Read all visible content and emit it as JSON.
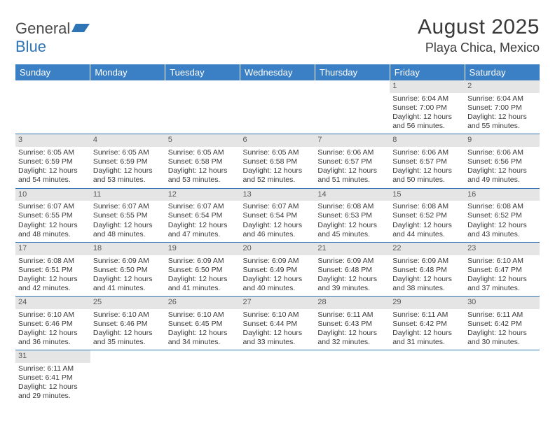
{
  "logo": {
    "text1": "General",
    "text2": "Blue"
  },
  "title": "August 2025",
  "location": "Playa Chica, Mexico",
  "colors": {
    "header_bg": "#3b7fc4",
    "header_text": "#ffffff",
    "daynum_bg": "#e5e5e5",
    "border": "#2f74b5",
    "text": "#3a3a3a"
  },
  "weekdays": [
    "Sunday",
    "Monday",
    "Tuesday",
    "Wednesday",
    "Thursday",
    "Friday",
    "Saturday"
  ],
  "weeks": [
    [
      null,
      null,
      null,
      null,
      null,
      {
        "n": "1",
        "sr": "6:04 AM",
        "ss": "7:00 PM",
        "dl": "12 hours and 56 minutes."
      },
      {
        "n": "2",
        "sr": "6:04 AM",
        "ss": "7:00 PM",
        "dl": "12 hours and 55 minutes."
      }
    ],
    [
      {
        "n": "3",
        "sr": "6:05 AM",
        "ss": "6:59 PM",
        "dl": "12 hours and 54 minutes."
      },
      {
        "n": "4",
        "sr": "6:05 AM",
        "ss": "6:59 PM",
        "dl": "12 hours and 53 minutes."
      },
      {
        "n": "5",
        "sr": "6:05 AM",
        "ss": "6:58 PM",
        "dl": "12 hours and 53 minutes."
      },
      {
        "n": "6",
        "sr": "6:05 AM",
        "ss": "6:58 PM",
        "dl": "12 hours and 52 minutes."
      },
      {
        "n": "7",
        "sr": "6:06 AM",
        "ss": "6:57 PM",
        "dl": "12 hours and 51 minutes."
      },
      {
        "n": "8",
        "sr": "6:06 AM",
        "ss": "6:57 PM",
        "dl": "12 hours and 50 minutes."
      },
      {
        "n": "9",
        "sr": "6:06 AM",
        "ss": "6:56 PM",
        "dl": "12 hours and 49 minutes."
      }
    ],
    [
      {
        "n": "10",
        "sr": "6:07 AM",
        "ss": "6:55 PM",
        "dl": "12 hours and 48 minutes."
      },
      {
        "n": "11",
        "sr": "6:07 AM",
        "ss": "6:55 PM",
        "dl": "12 hours and 48 minutes."
      },
      {
        "n": "12",
        "sr": "6:07 AM",
        "ss": "6:54 PM",
        "dl": "12 hours and 47 minutes."
      },
      {
        "n": "13",
        "sr": "6:07 AM",
        "ss": "6:54 PM",
        "dl": "12 hours and 46 minutes."
      },
      {
        "n": "14",
        "sr": "6:08 AM",
        "ss": "6:53 PM",
        "dl": "12 hours and 45 minutes."
      },
      {
        "n": "15",
        "sr": "6:08 AM",
        "ss": "6:52 PM",
        "dl": "12 hours and 44 minutes."
      },
      {
        "n": "16",
        "sr": "6:08 AM",
        "ss": "6:52 PM",
        "dl": "12 hours and 43 minutes."
      }
    ],
    [
      {
        "n": "17",
        "sr": "6:08 AM",
        "ss": "6:51 PM",
        "dl": "12 hours and 42 minutes."
      },
      {
        "n": "18",
        "sr": "6:09 AM",
        "ss": "6:50 PM",
        "dl": "12 hours and 41 minutes."
      },
      {
        "n": "19",
        "sr": "6:09 AM",
        "ss": "6:50 PM",
        "dl": "12 hours and 41 minutes."
      },
      {
        "n": "20",
        "sr": "6:09 AM",
        "ss": "6:49 PM",
        "dl": "12 hours and 40 minutes."
      },
      {
        "n": "21",
        "sr": "6:09 AM",
        "ss": "6:48 PM",
        "dl": "12 hours and 39 minutes."
      },
      {
        "n": "22",
        "sr": "6:09 AM",
        "ss": "6:48 PM",
        "dl": "12 hours and 38 minutes."
      },
      {
        "n": "23",
        "sr": "6:10 AM",
        "ss": "6:47 PM",
        "dl": "12 hours and 37 minutes."
      }
    ],
    [
      {
        "n": "24",
        "sr": "6:10 AM",
        "ss": "6:46 PM",
        "dl": "12 hours and 36 minutes."
      },
      {
        "n": "25",
        "sr": "6:10 AM",
        "ss": "6:46 PM",
        "dl": "12 hours and 35 minutes."
      },
      {
        "n": "26",
        "sr": "6:10 AM",
        "ss": "6:45 PM",
        "dl": "12 hours and 34 minutes."
      },
      {
        "n": "27",
        "sr": "6:10 AM",
        "ss": "6:44 PM",
        "dl": "12 hours and 33 minutes."
      },
      {
        "n": "28",
        "sr": "6:11 AM",
        "ss": "6:43 PM",
        "dl": "12 hours and 32 minutes."
      },
      {
        "n": "29",
        "sr": "6:11 AM",
        "ss": "6:42 PM",
        "dl": "12 hours and 31 minutes."
      },
      {
        "n": "30",
        "sr": "6:11 AM",
        "ss": "6:42 PM",
        "dl": "12 hours and 30 minutes."
      }
    ],
    [
      {
        "n": "31",
        "sr": "6:11 AM",
        "ss": "6:41 PM",
        "dl": "12 hours and 29 minutes."
      },
      null,
      null,
      null,
      null,
      null,
      null
    ]
  ],
  "labels": {
    "sunrise": "Sunrise:",
    "sunset": "Sunset:",
    "daylight": "Daylight:"
  }
}
